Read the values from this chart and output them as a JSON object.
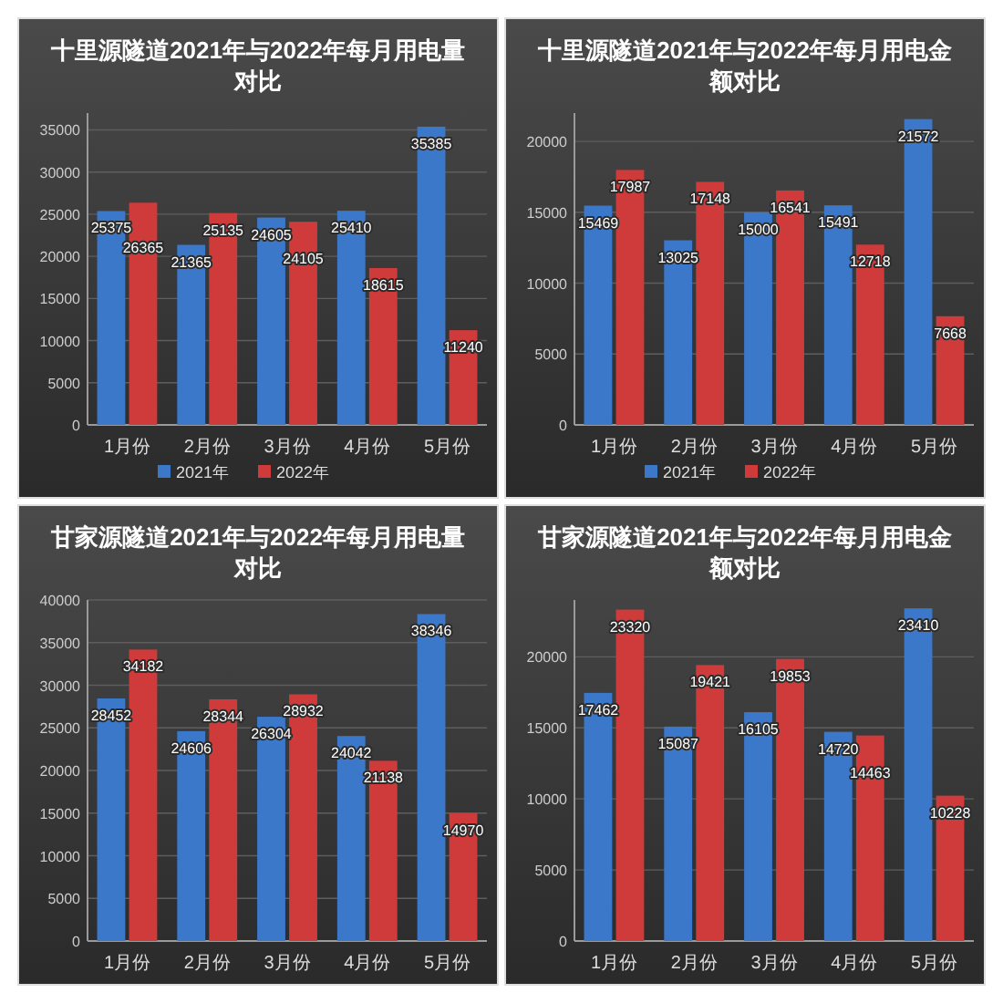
{
  "chart_data": [
    {
      "type": "bar",
      "title": "十里源隧道2021年与2022年每月用电量对比",
      "categories": [
        "1月份",
        "2月份",
        "3月份",
        "4月份",
        "5月份"
      ],
      "series": [
        {
          "name": "2021年",
          "color": "#3b78c9",
          "values": [
            25375,
            21365,
            24605,
            25410,
            35385
          ]
        },
        {
          "name": "2022年",
          "color": "#cf3b3b",
          "values": [
            26365,
            25135,
            24105,
            18615,
            11240
          ]
        }
      ],
      "ylim": [
        0,
        37000
      ],
      "yticks": [
        0,
        5000,
        10000,
        15000,
        20000,
        25000,
        30000,
        35000
      ],
      "grid": "y",
      "legend": "bottom",
      "data_labels": true
    },
    {
      "type": "bar",
      "title": "十里源隧道2021年与2022年每月用电金额对比",
      "categories": [
        "1月份",
        "2月份",
        "3月份",
        "4月份",
        "5月份"
      ],
      "series": [
        {
          "name": "2021年",
          "color": "#3b78c9",
          "values": [
            15469,
            13025,
            15000,
            15491,
            21572
          ]
        },
        {
          "name": "2022年",
          "color": "#cf3b3b",
          "values": [
            17987,
            17148,
            16541,
            12718,
            7668
          ]
        }
      ],
      "ylim": [
        0,
        22000
      ],
      "yticks": [
        0,
        5000,
        10000,
        15000,
        20000
      ],
      "grid": "y",
      "legend": "bottom",
      "data_labels": true
    },
    {
      "type": "bar",
      "title": "甘家源隧道2021年与2022年每月用电量对比",
      "categories": [
        "1月份",
        "2月份",
        "3月份",
        "4月份",
        "5月份"
      ],
      "series": [
        {
          "color": "#3b78c9",
          "values": [
            28452,
            24606,
            26304,
            24042,
            38346
          ]
        },
        {
          "color": "#cf3b3b",
          "values": [
            34182,
            28344,
            28932,
            21138,
            14970
          ]
        }
      ],
      "ylim": [
        0,
        40000
      ],
      "yticks": [
        0,
        5000,
        10000,
        15000,
        20000,
        25000,
        30000,
        35000,
        40000
      ],
      "grid": "y",
      "data_labels": true
    },
    {
      "type": "bar",
      "title": "甘家源隧道2021年与2022年每月用电金额对比",
      "categories": [
        "1月份",
        "2月份",
        "3月份",
        "4月份",
        "5月份"
      ],
      "series": [
        {
          "color": "#3b78c9",
          "values": [
            17462,
            15087,
            16105,
            14720,
            23410
          ]
        },
        {
          "color": "#cf3b3b",
          "values": [
            23320,
            19421,
            19853,
            14463,
            10228
          ]
        }
      ],
      "ylim": [
        0,
        24000
      ],
      "yticks": [
        0,
        5000,
        10000,
        15000,
        20000
      ],
      "grid": "y",
      "data_labels": true
    }
  ]
}
